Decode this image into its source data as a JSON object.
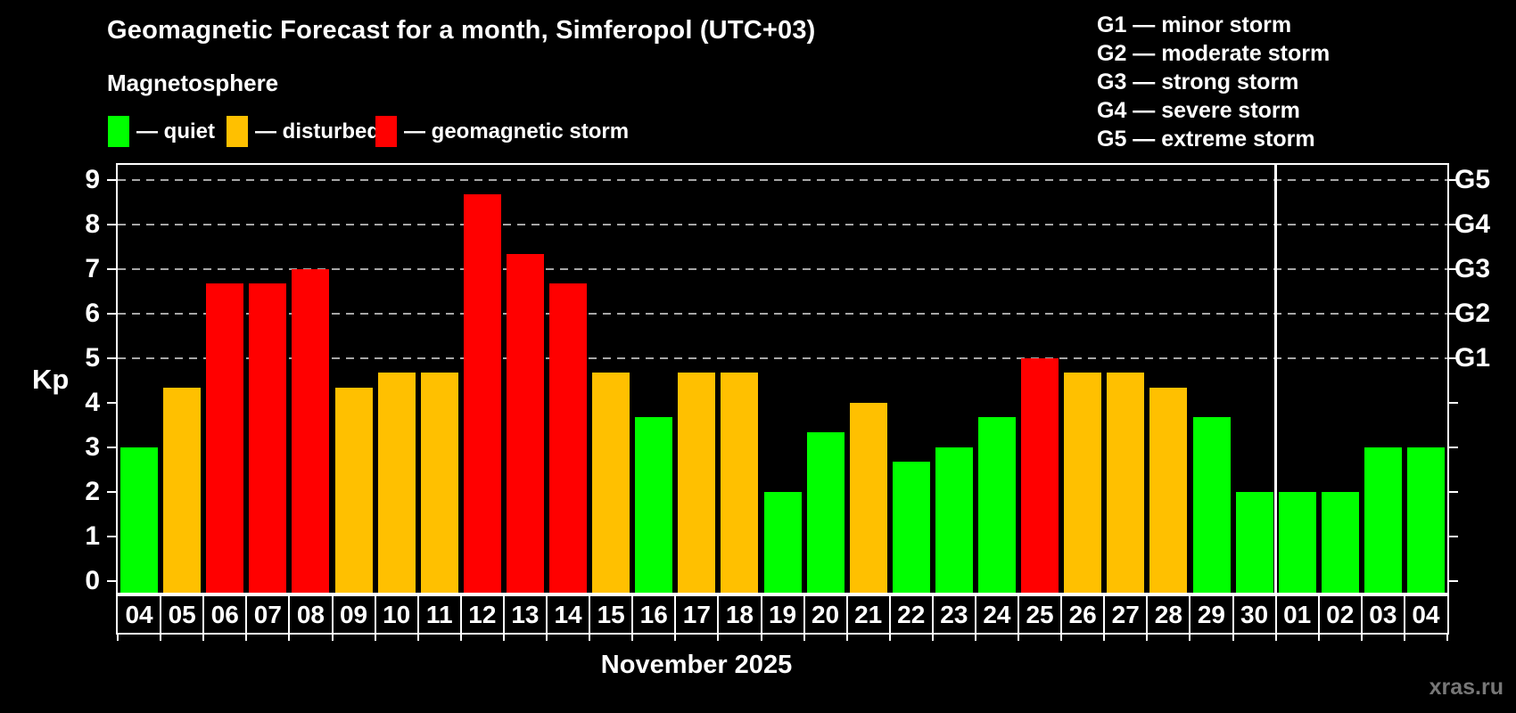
{
  "header": {
    "title": "Geomagnetic Forecast for a month, Simferopol (UTC+03)",
    "subtitle": "Magnetosphere"
  },
  "legend": {
    "items": [
      {
        "label": "— quiet",
        "level": "quiet"
      },
      {
        "label": "— disturbed",
        "level": "disturbed"
      },
      {
        "label": "— geomagnetic storm",
        "level": "storm"
      }
    ]
  },
  "g_scale_legend": {
    "items": [
      "G1 — minor storm",
      "G2 — moderate storm",
      "G3 — strong storm",
      "G4 — severe storm",
      "G5 — extreme storm"
    ]
  },
  "colors": {
    "quiet": "#00ff00",
    "disturbed": "#ffc000",
    "storm": "#ff0000",
    "grid": "#a6a6a6",
    "axis": "#ffffff",
    "watermark": "#777777",
    "background": "#000000"
  },
  "chart_data": {
    "type": "bar",
    "title": "Geomagnetic Forecast for a month, Simferopol (UTC+03)",
    "ylabel": "Kp",
    "xlabel": "November 2025",
    "ylim": [
      0,
      9
    ],
    "yticks": [
      0,
      1,
      2,
      3,
      4,
      5,
      6,
      7,
      8,
      9
    ],
    "gridlines_at": [
      5,
      6,
      7,
      8,
      9
    ],
    "right_axis_labels": [
      {
        "kp": 5,
        "label": "G1"
      },
      {
        "kp": 6,
        "label": "G2"
      },
      {
        "kp": 7,
        "label": "G3"
      },
      {
        "kp": 8,
        "label": "G4"
      },
      {
        "kp": 9,
        "label": "G5"
      }
    ],
    "categories": [
      "04",
      "05",
      "06",
      "07",
      "08",
      "09",
      "10",
      "11",
      "12",
      "13",
      "14",
      "15",
      "16",
      "17",
      "18",
      "19",
      "20",
      "21",
      "22",
      "23",
      "24",
      "25",
      "26",
      "27",
      "28",
      "29",
      "30",
      "01",
      "02",
      "03",
      "04"
    ],
    "values": [
      3,
      4.33,
      6.67,
      6.67,
      7,
      4.33,
      4.67,
      4.67,
      8.67,
      7.33,
      6.67,
      4.67,
      3.67,
      4.67,
      4.67,
      2,
      3.33,
      4,
      2.67,
      3,
      3.67,
      5,
      4.67,
      4.67,
      4.33,
      3.67,
      2,
      2,
      2,
      3,
      3
    ],
    "levels": [
      "quiet",
      "disturbed",
      "storm",
      "storm",
      "storm",
      "disturbed",
      "disturbed",
      "disturbed",
      "storm",
      "storm",
      "storm",
      "disturbed",
      "quiet",
      "disturbed",
      "disturbed",
      "quiet",
      "quiet",
      "disturbed",
      "quiet",
      "quiet",
      "quiet",
      "storm",
      "disturbed",
      "disturbed",
      "disturbed",
      "quiet",
      "quiet",
      "quiet",
      "quiet",
      "quiet",
      "quiet"
    ],
    "month_separator_after_index": 26,
    "legend_position": "top-left",
    "grid": true
  },
  "footer": {
    "xaxis_title": "November 2025",
    "watermark": "xras.ru"
  }
}
